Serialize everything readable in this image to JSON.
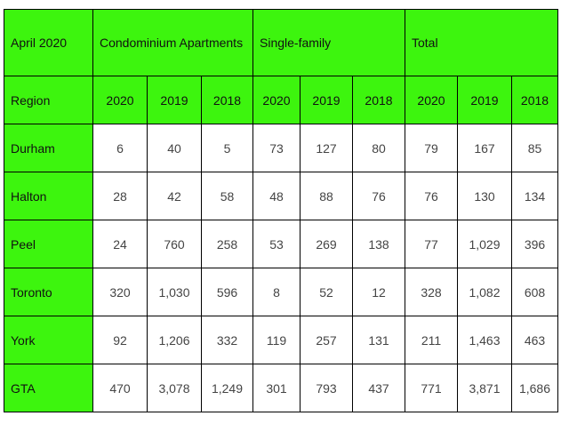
{
  "header": {
    "corner": "April 2020",
    "groups": [
      "Condominium Apartments",
      "Single-family",
      "Total"
    ],
    "region_label": "Region",
    "years": [
      "2020",
      "2019",
      "2018",
      "2020",
      "2019",
      "2018",
      "2020",
      "2019",
      "2018"
    ]
  },
  "rows": [
    {
      "region": "Durham",
      "values": [
        "6",
        "40",
        "5",
        "73",
        "127",
        "80",
        "79",
        "167",
        "85"
      ]
    },
    {
      "region": "Halton",
      "values": [
        "28",
        "42",
        "58",
        "48",
        "88",
        "76",
        "76",
        "130",
        "134"
      ]
    },
    {
      "region": "Peel",
      "values": [
        "24",
        "760",
        "258",
        "53",
        "269",
        "138",
        "77",
        "1,029",
        "396"
      ]
    },
    {
      "region": "Toronto",
      "values": [
        "320",
        "1,030",
        "596",
        "8",
        "52",
        "12",
        "328",
        "1,082",
        "608"
      ]
    },
    {
      "region": "York",
      "values": [
        "92",
        "1,206",
        "332",
        "119",
        "257",
        "131",
        "211",
        "1,463",
        "463"
      ]
    },
    {
      "region": "GTA",
      "values": [
        "470",
        "3,078",
        "1,249",
        "301",
        "793",
        "437",
        "771",
        "3,871",
        "1,686"
      ]
    }
  ],
  "colors": {
    "header_bg": "#3df50e",
    "cell_bg": "#ffffff",
    "border": "#000000"
  }
}
